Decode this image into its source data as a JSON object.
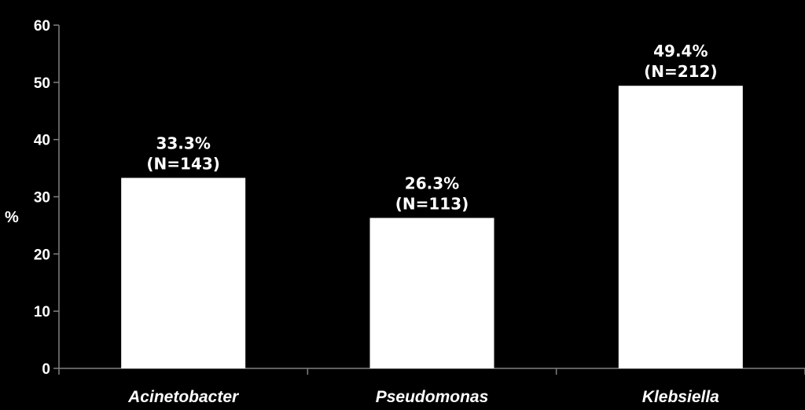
{
  "chart_data": {
    "type": "bar",
    "categories": [
      "Acinetobacter",
      "Pseudomonas",
      "Klebsiella"
    ],
    "values": [
      33.3,
      26.3,
      49.4
    ],
    "data_labels": [
      [
        "33.3%",
        "(N=143)"
      ],
      [
        "26.3%",
        "(N=113)"
      ],
      [
        "49.4%",
        "(N=212)"
      ]
    ],
    "title": "",
    "xlabel": "",
    "ylabel": "%",
    "ylim": [
      0,
      60
    ],
    "yticks": [
      0,
      10,
      20,
      30,
      40,
      50,
      60
    ],
    "grid": false,
    "legend": "none",
    "colors": {
      "background": "#000000",
      "bar": "#ffffff",
      "axis": "#808080",
      "text": "#ffffff"
    }
  }
}
